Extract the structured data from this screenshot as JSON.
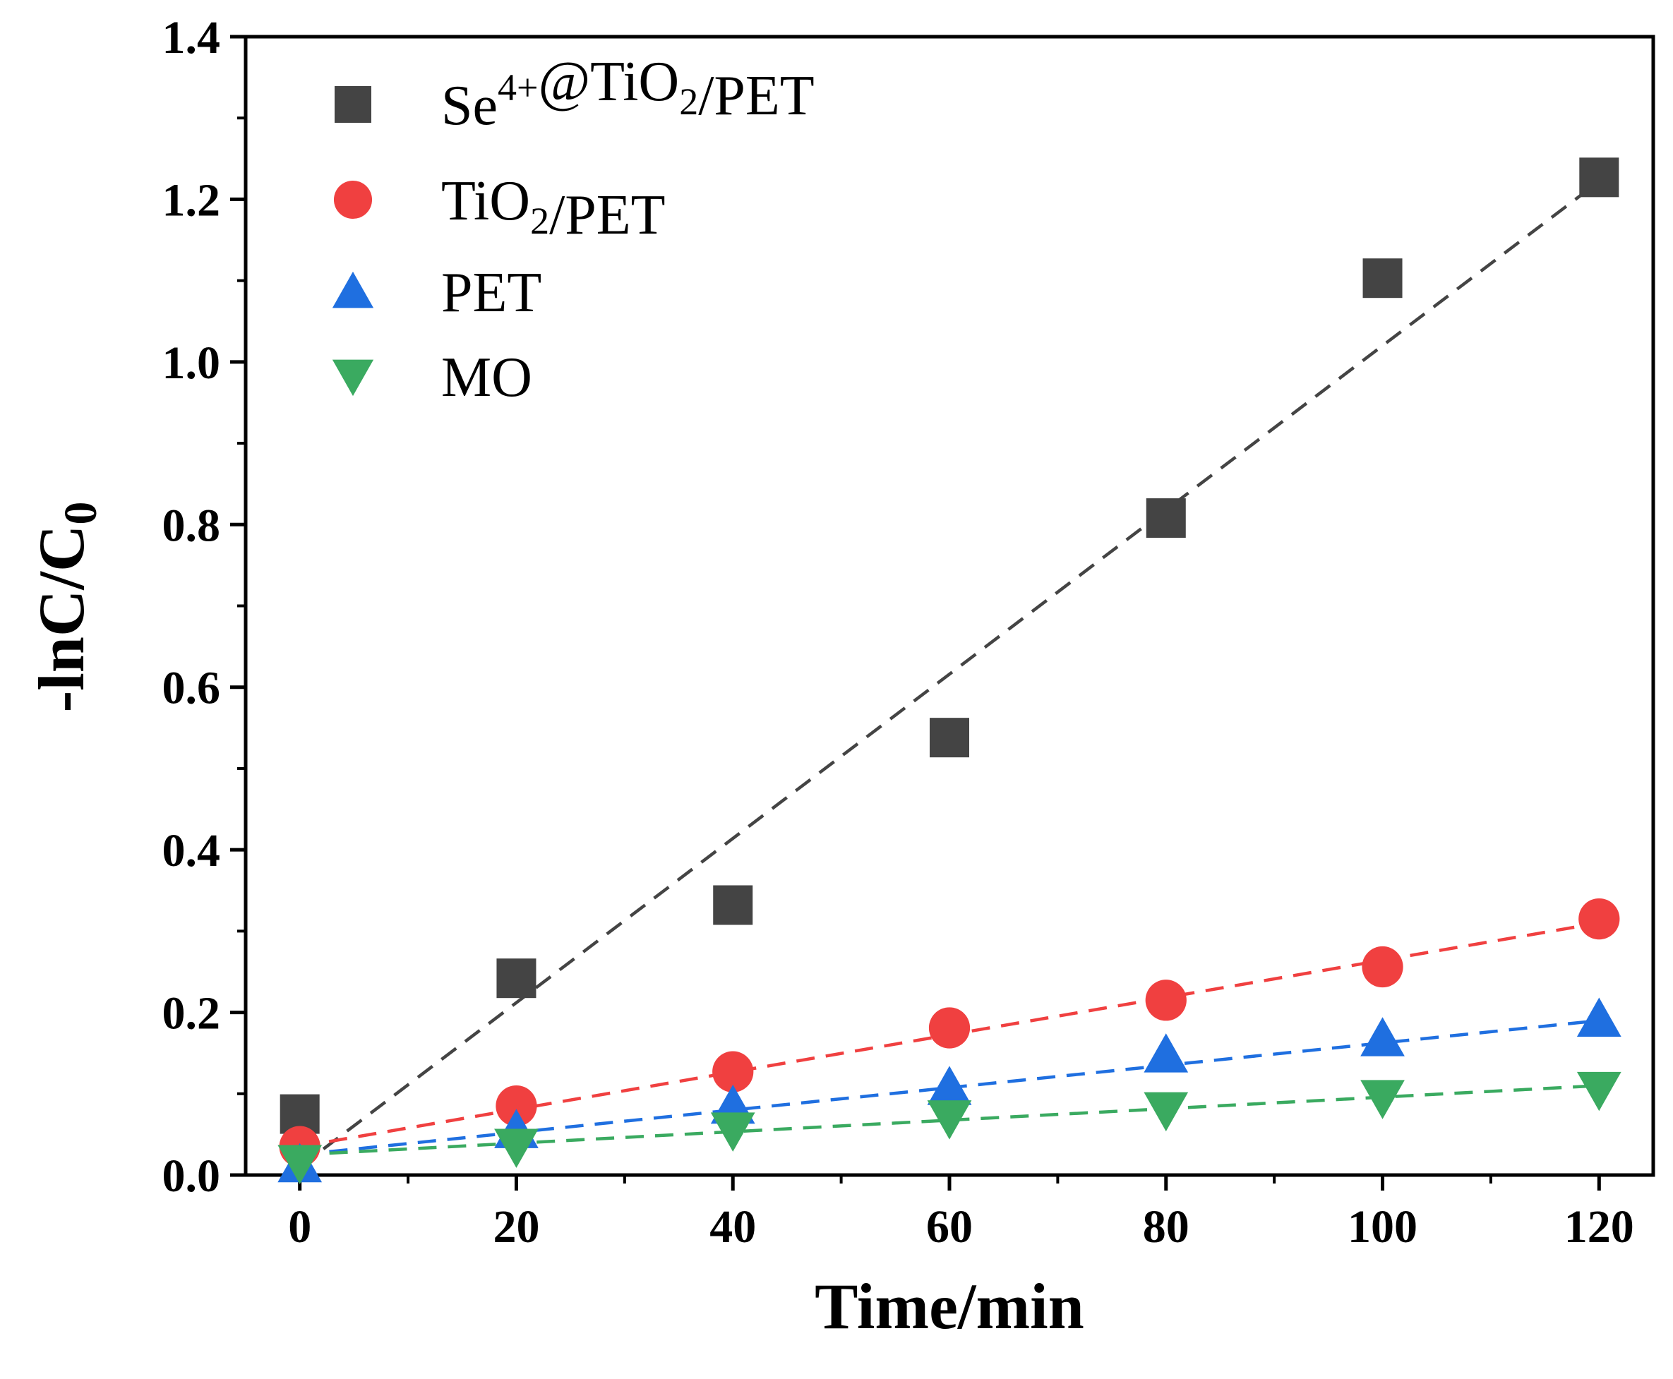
{
  "chart_data": {
    "type": "scatter",
    "xlabel": "Time/min",
    "ylabel": {
      "main": "-lnC/C",
      "sub": "0"
    },
    "xlim": [
      -5,
      125
    ],
    "ylim": [
      0,
      1.4
    ],
    "x_ticks": [
      0,
      20,
      40,
      60,
      80,
      100,
      120
    ],
    "x_minor_ticks": [
      10,
      30,
      50,
      70,
      90,
      110
    ],
    "y_ticks": [
      0.0,
      0.2,
      0.4,
      0.6,
      0.8,
      1.0,
      1.2,
      1.4
    ],
    "y_tick_labels": [
      "0.0",
      "0.2",
      "0.4",
      "0.6",
      "0.8",
      "1.0",
      "1.2",
      "1.4"
    ],
    "y_minor_ticks": [
      0.1,
      0.3,
      0.5,
      0.7,
      0.9,
      1.1,
      1.3
    ],
    "x_tick_labels": [
      "0",
      "20",
      "40",
      "60",
      "80",
      "100",
      "120"
    ],
    "grid": false,
    "legend_position": "top-left",
    "x": [
      0,
      20,
      40,
      60,
      80,
      100,
      120
    ],
    "series": [
      {
        "name": "Se4+@TiO2/PET",
        "label_parts": [
          {
            "text": "Se",
            "style": "normal"
          },
          {
            "text": "4+",
            "style": "sup"
          },
          {
            "text": "@TiO",
            "style": "normal"
          },
          {
            "text": "2",
            "style": "sub"
          },
          {
            "text": "/PET",
            "style": "normal"
          }
        ],
        "marker": "square",
        "color": "#444444",
        "values": [
          0.075,
          0.242,
          0.332,
          0.538,
          0.808,
          1.103,
          1.227
        ],
        "fit": [
          0.01,
          1.222
        ]
      },
      {
        "name": "TiO2/PET",
        "label_parts": [
          {
            "text": "TiO",
            "style": "normal"
          },
          {
            "text": "2",
            "style": "sub"
          },
          {
            "text": "/PET",
            "style": "normal"
          }
        ],
        "marker": "circle",
        "color": "#f04040",
        "values": [
          0.035,
          0.085,
          0.127,
          0.181,
          0.215,
          0.256,
          0.315
        ],
        "fit": [
          0.035,
          0.31
        ]
      },
      {
        "name": "PET",
        "label_parts": [
          {
            "text": "PET",
            "style": "normal"
          }
        ],
        "marker": "triangle-up",
        "color": "#1f6fe0",
        "values": [
          0.013,
          0.055,
          0.085,
          0.108,
          0.148,
          0.168,
          0.192
        ],
        "fit": [
          0.025,
          0.19
        ]
      },
      {
        "name": "MO",
        "label_parts": [
          {
            "text": "MO",
            "style": "normal"
          }
        ],
        "marker": "triangle-down",
        "color": "#3aaa60",
        "values": [
          0.015,
          0.035,
          0.055,
          0.07,
          0.08,
          0.095,
          0.105
        ],
        "fit": [
          0.025,
          0.11
        ]
      }
    ]
  }
}
